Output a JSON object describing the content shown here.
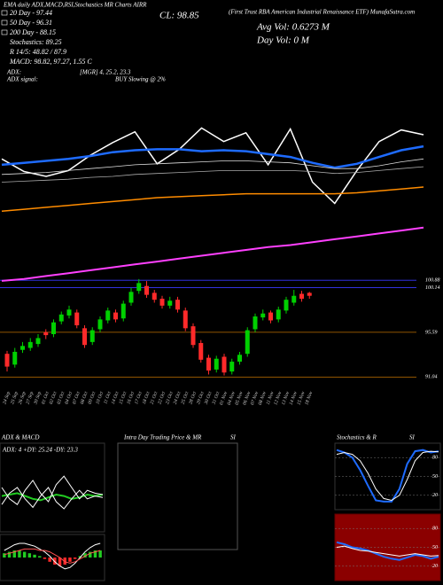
{
  "header": {
    "top_left": "EMA daily ADX,MACD,RSI,Stochastics MR Charts AIRR",
    "close": "CL: 98.85",
    "top_right": "(First Trust RBA American Industrial Renaissance ETF) MunafaSutra.com",
    "avg_vol": "Avg Vol: 0.6273  M",
    "day_vol": "Day Vol: 0   M",
    "legend": [
      "20 Day - 97.44",
      "50 Day - 96.31",
      "200 Day - 88.15",
      "Stochastics: 89.25",
      "R  14/5: 48.82 / 87.9",
      "MACD: 98.82, 97.27, 1.55  C"
    ],
    "adx_label": "ADX:",
    "adx_value": "[MGR] 4, 25.2, 23.3",
    "signal_label": "ADX  signal:",
    "signal_value": "BUY Slowing @ 2%"
  },
  "intraday": {
    "title": "Intra Day Trading Price  & MR",
    "suffix": "SI"
  },
  "chart_data": [
    {
      "type": "candlestick",
      "categories": [
        "24 Sep",
        "25 Sep",
        "26 Sep",
        "27 Sep",
        "30 Sep",
        "01 Oct",
        "02 Oct",
        "03 Oct",
        "04 Oct",
        "07 Oct",
        "08 Oct",
        "09 Oct",
        "10 Oct",
        "11 Oct",
        "14 Oct",
        "15 Oct",
        "16 Oct",
        "17 Oct",
        "18 Oct",
        "21 Oct",
        "22 Oct",
        "23 Oct",
        "24 Oct",
        "25 Oct",
        "28 Oct",
        "29 Oct",
        "30 Oct",
        "31 Oct",
        "01 Nov",
        "04 Nov",
        "05 Nov",
        "06 Nov",
        "07 Nov",
        "08 Nov",
        "11 Nov",
        "12 Nov",
        "13 Nov",
        "14 Nov",
        "15 Nov",
        "18 Nov"
      ],
      "open": [
        93.4,
        92.3,
        93.8,
        94.0,
        94.4,
        95.6,
        95.4,
        96.7,
        97.3,
        97.6,
        96.0,
        94.6,
        95.9,
        96.8,
        97.6,
        97.0,
        98.6,
        99.8,
        100.3,
        99.6,
        99.0,
        98.3,
        98.9,
        97.8,
        96.2,
        94.5,
        93.0,
        91.8,
        93.1,
        91.6,
        92.6,
        93.4,
        95.9,
        97.1,
        97.6,
        96.9,
        97.8,
        98.6,
        99.5,
        99.6
      ],
      "high": [
        93.7,
        94.0,
        94.6,
        95.0,
        95.4,
        95.9,
        96.9,
        97.7,
        98.3,
        97.9,
        96.3,
        96.1,
        97.2,
        98.1,
        97.9,
        98.8,
        100.1,
        101.0,
        100.8,
        99.9,
        99.3,
        99.2,
        99.2,
        98.1,
        96.5,
        94.8,
        93.3,
        93.2,
        93.4,
        92.9,
        93.6,
        96.1,
        97.5,
        97.9,
        97.8,
        98.2,
        99.2,
        99.9,
        99.8,
        99.7
      ],
      "low": [
        91.6,
        92.0,
        93.5,
        93.7,
        94.1,
        94.9,
        95.1,
        96.4,
        97.0,
        96.0,
        94.0,
        94.3,
        95.6,
        96.5,
        96.6,
        96.7,
        98.3,
        99.5,
        99.1,
        98.6,
        98.0,
        98.0,
        97.6,
        95.7,
        94.0,
        92.5,
        91.3,
        91.5,
        91.2,
        91.3,
        92.3,
        93.1,
        95.6,
        96.8,
        96.5,
        96.6,
        97.5,
        98.3,
        98.7,
        99.0
      ],
      "close": [
        92.1,
        93.6,
        94.2,
        94.6,
        95.0,
        95.3,
        96.6,
        97.4,
        97.9,
        96.3,
        94.3,
        95.8,
        96.9,
        97.8,
        96.9,
        98.5,
        99.7,
        100.6,
        99.4,
        98.9,
        98.3,
        98.8,
        97.9,
        96.0,
        94.3,
        92.8,
        91.7,
        92.9,
        91.5,
        92.6,
        93.3,
        95.8,
        97.2,
        97.5,
        96.8,
        97.9,
        98.9,
        99.3,
        99.0,
        99.3
      ],
      "up_color": "#00d000",
      "down_color": "#ff2a2a",
      "ylim": [
        89.9,
        101.8
      ],
      "levels": [
        100.88,
        100.14,
        95.59,
        91.04
      ],
      "level_colors": [
        "#3a3aff",
        "#3a3aff",
        "#c07000",
        "#c07000"
      ]
    },
    {
      "type": "line",
      "ylim": [
        83,
        101.5
      ],
      "series": [
        {
          "color": "#ffffff",
          "values": [
            96.8,
            95.5,
            95.0,
            95.6,
            97.2,
            98.5,
            99.6,
            96.3,
            97.8,
            100.0,
            98.6,
            99.5,
            96.2,
            99.9,
            94.4,
            92.2,
            95.6,
            98.6,
            99.8,
            99.3
          ]
        },
        {
          "color": "#1e6bff",
          "values": [
            96.2,
            96.4,
            96.6,
            96.8,
            97.1,
            97.5,
            97.7,
            97.8,
            97.8,
            97.6,
            97.7,
            97.6,
            97.3,
            97.0,
            96.4,
            95.9,
            96.3,
            97.0,
            97.7,
            98.1
          ]
        },
        {
          "color": "#dddddd",
          "values": [
            95.2,
            95.3,
            95.4,
            95.6,
            95.8,
            96.0,
            96.2,
            96.3,
            96.4,
            96.5,
            96.6,
            96.6,
            96.5,
            96.4,
            96.1,
            95.8,
            95.8,
            96.1,
            96.5,
            96.8
          ]
        },
        {
          "color": "#aaaaaa",
          "values": [
            94.4,
            94.5,
            94.6,
            94.7,
            94.9,
            95.0,
            95.2,
            95.3,
            95.4,
            95.5,
            95.6,
            95.6,
            95.6,
            95.6,
            95.5,
            95.3,
            95.4,
            95.6,
            95.8,
            96.0
          ]
        },
        {
          "color": "#ff8c00",
          "values": [
            91.4,
            91.6,
            91.8,
            92.0,
            92.2,
            92.4,
            92.6,
            92.8,
            92.9,
            93.0,
            93.1,
            93.2,
            93.2,
            93.2,
            93.2,
            93.2,
            93.3,
            93.5,
            93.7,
            93.9
          ]
        },
        {
          "color": "#ff40ff",
          "values": [
            84.2,
            84.4,
            84.7,
            85.0,
            85.3,
            85.6,
            85.9,
            86.2,
            86.5,
            86.8,
            87.1,
            87.4,
            87.7,
            87.9,
            88.2,
            88.5,
            88.8,
            89.1,
            89.4,
            89.7
          ]
        }
      ]
    },
    {
      "type": "line",
      "title": "ADX  & MACD",
      "subtitle": "ADX: 4  +DY: 25.24  -DY: 23.3",
      "ylim": [
        0,
        60
      ],
      "series": [
        {
          "color": "#22cc22",
          "values": [
            24,
            25,
            26,
            24,
            22,
            21,
            23,
            25,
            24,
            22,
            23,
            25,
            24,
            25
          ]
        },
        {
          "color": "#ffffff",
          "values": [
            30,
            22,
            18,
            28,
            35,
            26,
            20,
            32,
            38,
            30,
            22,
            28,
            26,
            25
          ]
        },
        {
          "color": "#ffffff",
          "values": [
            18,
            26,
            30,
            22,
            16,
            24,
            30,
            20,
            15,
            22,
            28,
            22,
            24,
            23
          ]
        }
      ]
    },
    {
      "type": "macd",
      "ylim": [
        -1.5,
        1.5
      ],
      "up_color": "#22cc22",
      "down_color": "#ff2a2a",
      "values": [
        0.3,
        0.4,
        0.5,
        0.5,
        0.4,
        0.3,
        0.2,
        0.1,
        -0.1,
        -0.3,
        -0.5,
        -0.6,
        -0.5,
        -0.3,
        -0.1,
        0.1,
        0.3,
        0.4,
        0.5,
        0.5
      ],
      "series": [
        {
          "color": "#ffffff",
          "values": [
            0.5,
            0.7,
            0.9,
            1.0,
            1.0,
            0.9,
            0.8,
            0.6,
            0.4,
            0.1,
            -0.3,
            -0.6,
            -0.8,
            -0.7,
            -0.4,
            0.0,
            0.4,
            0.7,
            0.9,
            1.0
          ]
        },
        {
          "color": "#ff5050",
          "values": [
            0.2,
            0.3,
            0.4,
            0.5,
            0.6,
            0.6,
            0.6,
            0.5,
            0.5,
            0.4,
            0.2,
            0.0,
            -0.3,
            -0.4,
            -0.3,
            -0.1,
            0.1,
            0.3,
            0.4,
            0.5
          ]
        }
      ]
    },
    {
      "type": "line",
      "title": "Stochastics & R",
      "suffix": "SI",
      "ylim": [
        0,
        100
      ],
      "yticks": [
        80,
        50,
        20
      ],
      "series": [
        {
          "color": "#1e6bff",
          "values": [
            92,
            88,
            80,
            60,
            35,
            12,
            10,
            10,
            30,
            70,
            90,
            92,
            88,
            90
          ]
        },
        {
          "color": "#ffffff",
          "values": [
            85,
            88,
            85,
            75,
            55,
            30,
            15,
            12,
            20,
            45,
            75,
            88,
            90,
            89
          ]
        }
      ]
    },
    {
      "type": "line",
      "background": "#8b0000",
      "ylim": [
        0,
        100
      ],
      "yticks": [
        80,
        50,
        20
      ],
      "series": [
        {
          "color": "#1e6bff",
          "values": [
            58,
            55,
            50,
            48,
            45,
            40,
            35,
            32,
            30,
            34,
            38,
            36,
            32,
            35
          ]
        },
        {
          "color": "#ffffff",
          "values": [
            50,
            52,
            48,
            45,
            44,
            42,
            40,
            38,
            36,
            38,
            40,
            38,
            36,
            37
          ]
        }
      ]
    }
  ]
}
